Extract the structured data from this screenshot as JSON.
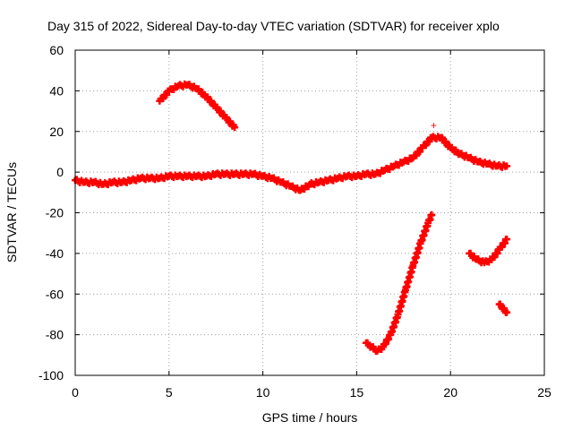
{
  "chart_data": {
    "type": "scatter",
    "title": "Day 315 of 2022, Sidereal Day-to-day VTEC variation (SDTVAR) for receiver xplo",
    "xlabel": "GPS time / hours",
    "ylabel": "SDTVAR / TECUs",
    "xlim": [
      0,
      25
    ],
    "ylim": [
      -100,
      60
    ],
    "xticks": [
      0,
      5,
      10,
      15,
      20,
      25
    ],
    "yticks": [
      -100,
      -80,
      -60,
      -40,
      -20,
      0,
      20,
      40,
      60
    ],
    "xtick_labels": [
      "0",
      "5",
      "10",
      "15",
      "20",
      "25"
    ],
    "ytick_labels": [
      "-100",
      "-80",
      "-60",
      "-40",
      "-20",
      "0",
      "20",
      "40",
      "60"
    ],
    "grid": true,
    "marker": "+",
    "color": "#ff0000",
    "series": [
      {
        "name": "main-arc",
        "x": [
          0,
          0.5,
          1,
          1.5,
          2,
          2.5,
          3,
          3.5,
          4,
          4.5,
          5,
          5.5,
          6,
          6.5,
          7,
          7.5,
          8,
          8.5,
          9,
          9.5,
          10,
          10.5,
          11,
          11.5,
          12,
          12.5,
          13,
          13.5,
          14,
          14.5,
          15,
          15.5,
          16,
          16.5,
          17,
          17.5,
          18,
          18.5,
          19,
          19.5,
          20,
          20.5,
          21,
          21.5,
          22,
          22.5,
          23
        ],
        "y": [
          -4,
          -5,
          -5,
          -6,
          -5,
          -5,
          -4,
          -3,
          -3,
          -3,
          -2,
          -2,
          -2,
          -2,
          -2,
          -1,
          -1,
          -1,
          -1,
          -1,
          -2,
          -3,
          -5,
          -7,
          -9,
          -6,
          -5,
          -4,
          -3,
          -2,
          -2,
          -1,
          -1,
          1,
          3,
          5,
          7,
          12,
          17,
          17,
          12,
          9,
          7,
          5,
          4,
          3,
          3
        ]
      },
      {
        "name": "early-arc",
        "x": [
          4.5,
          5,
          5.5,
          6,
          6.5,
          7,
          7.5,
          8,
          8.5
        ],
        "y": [
          35,
          40,
          42.5,
          43,
          41,
          37,
          32,
          27,
          22
        ]
      },
      {
        "name": "descent-arc",
        "x": [
          15.5,
          15.8,
          16.1,
          16.4,
          16.8,
          17.2,
          17.6,
          18,
          18.4,
          18.8,
          19
        ],
        "y": [
          -84,
          -86,
          -88,
          -86,
          -80,
          -70,
          -58,
          -46,
          -35,
          -25,
          -21
        ]
      },
      {
        "name": "late-arc",
        "x": [
          21,
          21.4,
          21.8,
          22.2,
          22.6,
          23
        ],
        "y": [
          -40,
          -43,
          -44.5,
          -43,
          -38,
          -33
        ]
      },
      {
        "name": "final-arc",
        "x": [
          22.6,
          22.8,
          23
        ],
        "y": [
          -65,
          -67,
          -69
        ]
      }
    ],
    "annotations": [
      {
        "x": 19.1,
        "y": 23,
        "text": "+"
      }
    ]
  }
}
